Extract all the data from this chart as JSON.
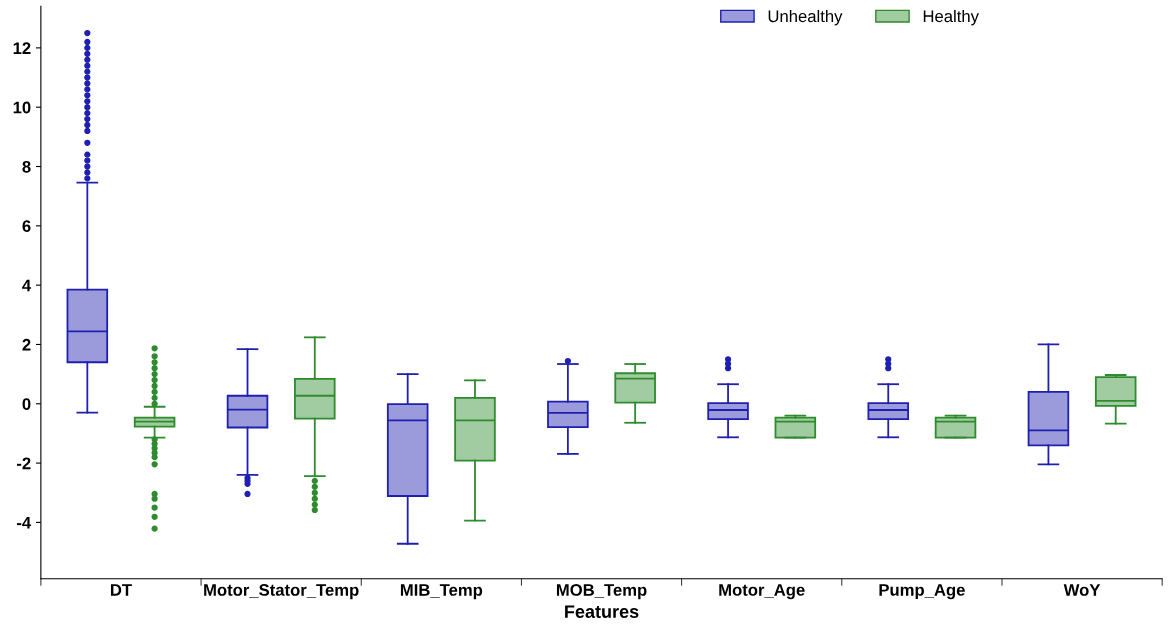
{
  "chart_data": {
    "type": "box",
    "xlabel": "Features",
    "categories": [
      "DT",
      "Motor_Stator_Temp",
      "MIB_Temp",
      "MOB_Temp",
      "Motor_Age",
      "Pump_Age",
      "WoY"
    ],
    "ylim": [
      -5.9,
      13.4
    ],
    "yticks": [
      -4,
      -2,
      0,
      2,
      4,
      6,
      8,
      10,
      12
    ],
    "grid": false,
    "legend": "top right",
    "series": [
      {
        "name": "Unhealthy",
        "color": "#2020b0",
        "boxes": [
          {
            "low": -0.3,
            "q1": 1.4,
            "median": 2.44,
            "q3": 3.85,
            "high": 7.46,
            "outliers": [
              7.6,
              7.8,
              8.0,
              8.2,
              8.4,
              8.8,
              9.2,
              9.4,
              9.6,
              9.8,
              10.0,
              10.2,
              10.4,
              10.6,
              10.8,
              11.0,
              11.2,
              11.4,
              11.6,
              11.8,
              12.0,
              12.2,
              12.5
            ]
          },
          {
            "low": -2.4,
            "q1": -0.8,
            "median": -0.2,
            "q3": 0.27,
            "high": 1.84,
            "outliers": [
              -2.5,
              -2.6,
              -2.7,
              -3.04
            ]
          },
          {
            "low": -4.72,
            "q1": -3.11,
            "median": -0.56,
            "q3": -0.01,
            "high": 1.0
          },
          {
            "low": -1.69,
            "q1": -0.79,
            "median": -0.31,
            "q3": 0.07,
            "high": 1.34,
            "outliers": [
              1.44
            ]
          },
          {
            "low": -1.13,
            "q1": -0.52,
            "median": -0.21,
            "q3": 0.02,
            "high": 0.66,
            "outliers": [
              1.2,
              1.35,
              1.5
            ]
          },
          {
            "low": -1.13,
            "q1": -0.52,
            "median": -0.21,
            "q3": 0.02,
            "high": 0.66,
            "outliers": [
              1.2,
              1.35,
              1.5
            ]
          },
          {
            "low": -2.04,
            "q1": -1.4,
            "median": -0.9,
            "q3": 0.4,
            "high": 2.0
          }
        ]
      },
      {
        "name": "Healthy",
        "color": "#2e8b2e",
        "boxes": [
          {
            "low": -1.14,
            "q1": -0.77,
            "median": -0.6,
            "q3": -0.47,
            "high": -0.1,
            "outliers": [
              0.0,
              0.2,
              0.4,
              0.6,
              0.8,
              1.0,
              1.2,
              1.4,
              1.6,
              1.87,
              -1.2,
              -1.35,
              -1.5,
              -1.65,
              -1.8,
              -2.04,
              -3.04,
              -3.2,
              -3.5,
              -3.81,
              -4.21
            ]
          },
          {
            "low": -2.44,
            "q1": -0.5,
            "median": 0.27,
            "q3": 0.84,
            "high": 2.24,
            "outliers": [
              -2.6,
              -2.8,
              -3.0,
              -3.2,
              -3.4,
              -3.58
            ]
          },
          {
            "low": -3.94,
            "q1": -1.92,
            "median": -0.56,
            "q3": 0.2,
            "high": 0.79
          },
          {
            "low": -0.64,
            "q1": 0.04,
            "median": 0.85,
            "q3": 1.03,
            "high": 1.34
          },
          {
            "low": -1.14,
            "q1": -1.14,
            "median": -0.6,
            "q3": -0.47,
            "high": -0.4
          },
          {
            "low": -1.14,
            "q1": -1.14,
            "median": -0.6,
            "q3": -0.47,
            "high": -0.4
          },
          {
            "low": -0.67,
            "q1": -0.07,
            "median": 0.1,
            "q3": 0.9,
            "high": 0.97
          }
        ]
      }
    ]
  }
}
